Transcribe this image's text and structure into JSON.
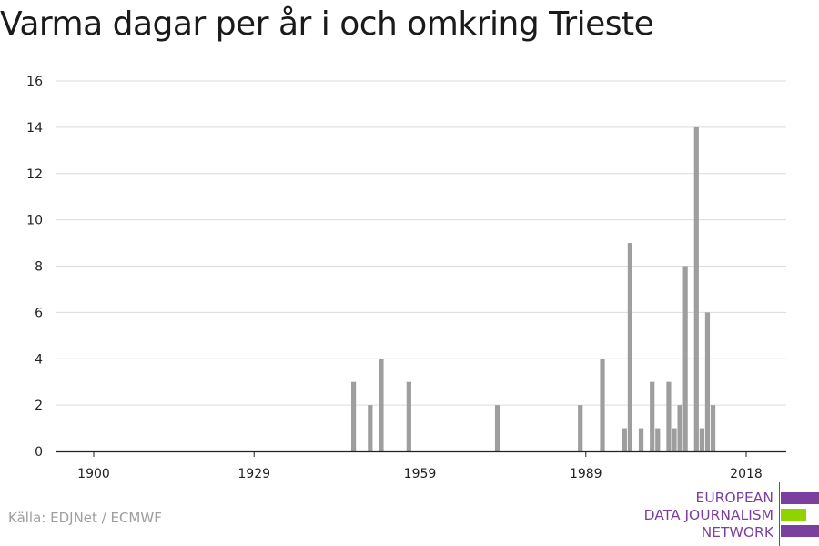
{
  "chart_data": {
    "type": "bar",
    "title": "Varma dagar per år i och omkring Trieste",
    "xlabel": "",
    "ylabel": "",
    "xlim": [
      1894,
      2024
    ],
    "ylim": [
      0,
      16
    ],
    "y_ticks": [
      0,
      2,
      4,
      6,
      8,
      10,
      12,
      14,
      16
    ],
    "x_ticks": [
      1900,
      1929,
      1959,
      1989,
      2018
    ],
    "grid": true,
    "bar_color": "#9e9e9e",
    "x": [
      1947,
      1950,
      1952,
      1957,
      1973,
      1988,
      1992,
      1996,
      1997,
      1999,
      2001,
      2002,
      2004,
      2005,
      2006,
      2007,
      2009,
      2010,
      2011,
      2012
    ],
    "values": [
      3,
      2,
      4,
      3,
      2,
      2,
      4,
      1,
      9,
      1,
      3,
      1,
      3,
      1,
      2,
      8,
      14,
      1,
      6,
      2
    ]
  },
  "source": "Källa: EDJNet / ECMWF",
  "logo": {
    "lines": [
      "EUROPEAN",
      "DATA JOURNALISM",
      "NETWORK"
    ],
    "colors": {
      "purple": "#7b3fa0",
      "green": "#8fd400"
    }
  }
}
